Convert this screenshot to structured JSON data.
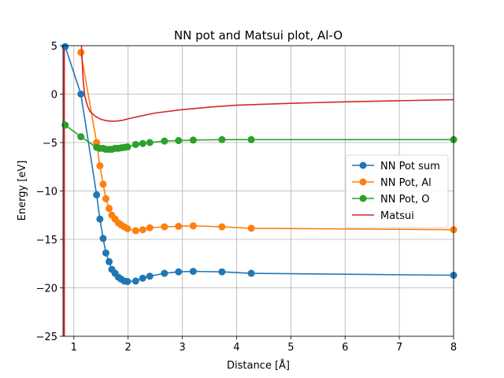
{
  "chart_data": {
    "type": "line",
    "title": "NN pot and Matsui plot, Al-O",
    "xlabel": "Distance [Å]",
    "ylabel": "Energy [eV]",
    "xlim": [
      0.8,
      8
    ],
    "ylim": [
      -25,
      5
    ],
    "xticks": [
      1,
      2,
      3,
      4,
      5,
      6,
      7,
      8
    ],
    "yticks": [
      5,
      0,
      -5,
      -10,
      -15,
      -20,
      -25
    ],
    "xtick_labels": [
      "1",
      "2",
      "3",
      "4",
      "5",
      "6",
      "7",
      "8"
    ],
    "ytick_labels": [
      "5",
      "0",
      "−5",
      "−10",
      "−15",
      "−20",
      "−25"
    ],
    "grid": true,
    "legend_position": "center-right",
    "series": [
      {
        "name": "NN Pot sum",
        "color": "#1f77b4",
        "marker": "circle",
        "x": [
          0.84,
          1.13,
          1.42,
          1.48,
          1.54,
          1.59,
          1.65,
          1.7,
          1.76,
          1.82,
          1.87,
          1.93,
          1.99,
          2.14,
          2.27,
          2.4,
          2.67,
          2.93,
          3.2,
          3.73,
          4.27,
          8.0
        ],
        "y": [
          4.9,
          0.0,
          -10.4,
          -12.9,
          -14.9,
          -16.4,
          -17.3,
          -18.1,
          -18.5,
          -18.9,
          -19.1,
          -19.3,
          -19.35,
          -19.3,
          -19.0,
          -18.8,
          -18.5,
          -18.35,
          -18.3,
          -18.35,
          -18.5,
          -18.7
        ]
      },
      {
        "name": "NN Pot, Al",
        "color": "#ff7f0e",
        "marker": "circle",
        "x": [
          1.13,
          1.42,
          1.48,
          1.54,
          1.59,
          1.65,
          1.7,
          1.76,
          1.82,
          1.87,
          1.93,
          1.99,
          2.14,
          2.27,
          2.4,
          2.67,
          2.93,
          3.2,
          3.73,
          4.27,
          8.0
        ],
        "y": [
          4.3,
          -5.0,
          -7.4,
          -9.3,
          -10.8,
          -11.8,
          -12.5,
          -12.9,
          -13.3,
          -13.5,
          -13.7,
          -13.9,
          -14.1,
          -14.0,
          -13.8,
          -13.7,
          -13.65,
          -13.6,
          -13.7,
          -13.85,
          -14.0
        ]
      },
      {
        "name": "NN Pot, O",
        "color": "#2ca02c",
        "marker": "circle",
        "x": [
          0.84,
          1.13,
          1.42,
          1.48,
          1.54,
          1.59,
          1.65,
          1.7,
          1.76,
          1.82,
          1.87,
          1.93,
          1.99,
          2.14,
          2.27,
          2.4,
          2.67,
          2.93,
          3.2,
          3.73,
          4.27,
          8.0
        ],
        "y": [
          -3.2,
          -4.4,
          -5.5,
          -5.6,
          -5.6,
          -5.7,
          -5.7,
          -5.7,
          -5.6,
          -5.6,
          -5.55,
          -5.5,
          -5.45,
          -5.2,
          -5.1,
          -5.0,
          -4.85,
          -4.8,
          -4.75,
          -4.7,
          -4.7,
          -4.7
        ]
      },
      {
        "name": "Matsui",
        "color": "#d62728",
        "marker": "none",
        "x": [
          1.14,
          1.17,
          1.2,
          1.25,
          1.3,
          1.4,
          1.5,
          1.6,
          1.7,
          1.8,
          1.9,
          2.0,
          2.2,
          2.5,
          3.0,
          3.5,
          4.0,
          5.0,
          6.0,
          7.0,
          8.0
        ],
        "y": [
          5.0,
          1.5,
          -0.2,
          -1.2,
          -1.8,
          -2.3,
          -2.6,
          -2.75,
          -2.8,
          -2.78,
          -2.7,
          -2.55,
          -2.3,
          -1.95,
          -1.6,
          -1.35,
          -1.15,
          -0.95,
          -0.8,
          -0.68,
          -0.58
        ]
      }
    ]
  }
}
